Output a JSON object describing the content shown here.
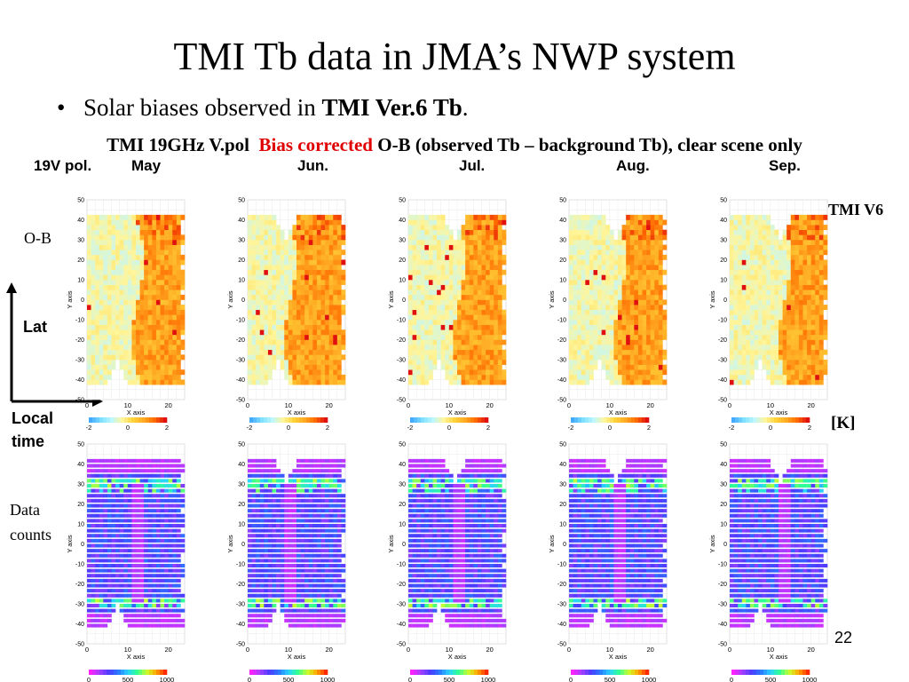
{
  "slide": {
    "title": "TMI Tb data in JMA’s NWP system",
    "bullet_plain": "Solar biases observed in ",
    "bullet_bold": "TMI Ver.6 Tb",
    "bullet_end": ".",
    "subtitle_a": "TMI 19GHz V.pol  ",
    "subtitle_red": "Bias corrected",
    "subtitle_b": " O-B (observed Tb – background Tb), clear scene only",
    "col_header_pol": "19V pol.",
    "months": [
      "May",
      "Jun.",
      "Jul.",
      "Aug.",
      "Sep."
    ],
    "row_label_ob": "O-B",
    "row_label_counts_1": "Data",
    "row_label_counts_2": "counts",
    "arrow_lat": "Lat",
    "arrow_local_1": "Local",
    "arrow_local_2": "time",
    "unit_label": "[K]",
    "version_label": "TMI V6",
    "page_number": "22"
  },
  "chart_data": [
    {
      "type": "heatmap",
      "row": "O-B",
      "months": [
        "May",
        "Jun.",
        "Jul.",
        "Aug.",
        "Sep."
      ],
      "xlabel": "X axis",
      "ylabel": "Y axis",
      "xlim": [
        0,
        24
      ],
      "ylim": [
        -50,
        50
      ],
      "x_ticks": [
        0,
        10,
        20
      ],
      "y_ticks": [
        -50,
        -40,
        -30,
        -20,
        -10,
        0,
        10,
        20,
        30,
        40,
        50
      ],
      "colorbar": {
        "min": -2,
        "max": 2,
        "ticks": [
          -2,
          0,
          2
        ]
      },
      "colors": [
        "#44aaff",
        "#7fe0ff",
        "#bff7ff",
        "#fff59a",
        "#ffd23a",
        "#ffaa22",
        "#ff6a00",
        "#e01010"
      ],
      "description_values": {
        "low_side_typical": -0.6,
        "high_side_typical": 0.8,
        "max": 2
      }
    },
    {
      "type": "heatmap",
      "row": "Data counts",
      "months": [
        "May",
        "Jun.",
        "Jul.",
        "Aug.",
        "Sep."
      ],
      "xlabel": "X axis",
      "ylabel": "Y axis",
      "xlim": [
        0,
        24
      ],
      "ylim": [
        -50,
        50
      ],
      "x_ticks": [
        0,
        10,
        20
      ],
      "y_ticks": [
        -50,
        -40,
        -30,
        -20,
        -10,
        0,
        10,
        20,
        30,
        40,
        50
      ],
      "colorbar": {
        "min": 0,
        "max": 1000,
        "ticks": [
          0,
          500,
          1000
        ]
      },
      "colors": [
        "#ff22ff",
        "#a040ff",
        "#4a3cff",
        "#2a7bff",
        "#2ad3ff",
        "#30ff90",
        "#c8ff30",
        "#ffaa00",
        "#ff2a00"
      ],
      "description_values": {
        "edge_counts": 100,
        "typical_counts": 300,
        "peak_counts": 700
      }
    }
  ]
}
